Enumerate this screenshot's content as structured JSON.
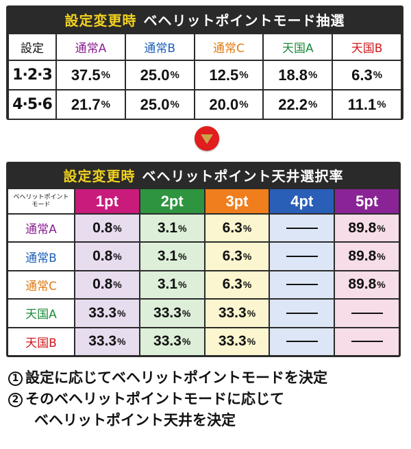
{
  "table1": {
    "title_highlight": "設定変更時",
    "title_rest": "ベヘリットポイントモード抽選",
    "corner_label": "設定",
    "columns": [
      {
        "label": "通常A",
        "color": "#8a1f8f"
      },
      {
        "label": "通常B",
        "color": "#1d5fb5"
      },
      {
        "label": "通常C",
        "color": "#e07b12"
      },
      {
        "label": "天国A",
        "color": "#1b8a3a"
      },
      {
        "label": "天国B",
        "color": "#d0171b"
      }
    ],
    "rows": [
      {
        "label": "1·2·3",
        "values": [
          "37.5",
          "25.0",
          "12.5",
          "18.8",
          "6.3"
        ]
      },
      {
        "label": "4·5·6",
        "values": [
          "21.7",
          "25.0",
          "20.0",
          "22.2",
          "11.1"
        ]
      }
    ],
    "unit": "%"
  },
  "arrow_icon": "down-triangle-icon",
  "table2": {
    "title_highlight": "設定変更時",
    "title_rest": "ベヘリットポイント天井選択率",
    "corner_line1": "ベヘリットポイント",
    "corner_line2": "モード",
    "columns": [
      {
        "label": "1pt",
        "color": "#c81b7b",
        "cell_bg": "#e8dcef"
      },
      {
        "label": "2pt",
        "color": "#2e9440",
        "cell_bg": "#ddefd8"
      },
      {
        "label": "3pt",
        "color": "#f07e1c",
        "cell_bg": "#fbf6cf"
      },
      {
        "label": "4pt",
        "color": "#2a5fb8",
        "cell_bg": "#dde6f6"
      },
      {
        "label": "5pt",
        "color": "#8a2496",
        "cell_bg": "#f6dde7"
      }
    ],
    "rows": [
      {
        "label": "通常A",
        "color": "#8a1f8f",
        "values": [
          "0.8",
          "3.1",
          "6.3",
          "—",
          "89.8"
        ]
      },
      {
        "label": "通常B",
        "color": "#1d5fb5",
        "values": [
          "0.8",
          "3.1",
          "6.3",
          "—",
          "89.8"
        ]
      },
      {
        "label": "通常C",
        "color": "#e07b12",
        "values": [
          "0.8",
          "3.1",
          "6.3",
          "—",
          "89.8"
        ]
      },
      {
        "label": "天国A",
        "color": "#1b8a3a",
        "values": [
          "33.3",
          "33.3",
          "33.3",
          "—",
          "—"
        ]
      },
      {
        "label": "天国B",
        "color": "#d0171b",
        "values": [
          "33.3",
          "33.3",
          "33.3",
          "—",
          "—"
        ]
      }
    ],
    "unit": "%"
  },
  "notes": {
    "n1_mark": "1",
    "n1_text": "設定に応じてベヘリットポイントモードを決定",
    "n2_mark": "2",
    "n2_text_a": "そのベヘリットポイントモードに応じて",
    "n2_text_b": "ベヘリットポイント天井を決定"
  }
}
